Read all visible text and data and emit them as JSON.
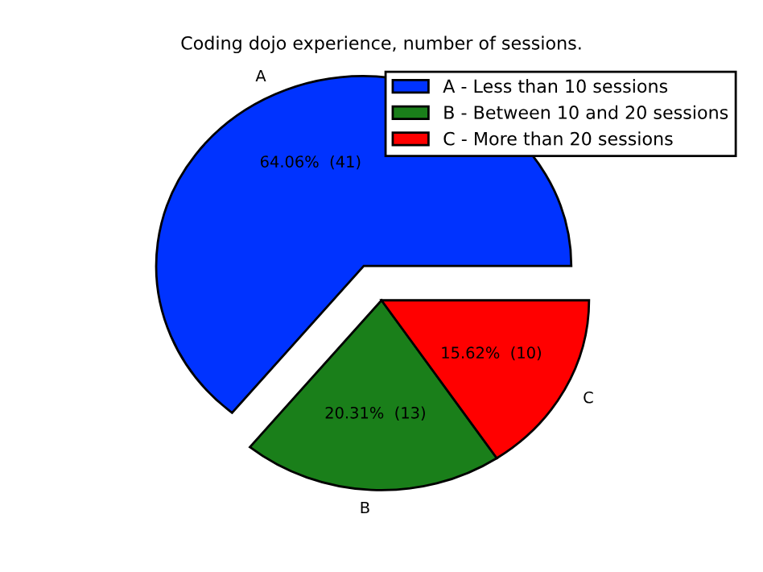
{
  "chart_data": {
    "type": "pie",
    "title": "Coding dojo experience, number of sessions.",
    "categories": [
      "A - Less than 10 sessions",
      "B - Between 10 and 20 sessions",
      "C - More than 20 sessions"
    ],
    "values": [
      41,
      13,
      10
    ],
    "colors": [
      "#0033ff",
      "#1a7f1a",
      "#ff0000"
    ],
    "value_labels": [
      "64.06%  (41)",
      "20.31%  (13)",
      "15.62%  (10)"
    ],
    "annotations": [
      "A",
      "B",
      "C"
    ],
    "legend": "top right"
  }
}
